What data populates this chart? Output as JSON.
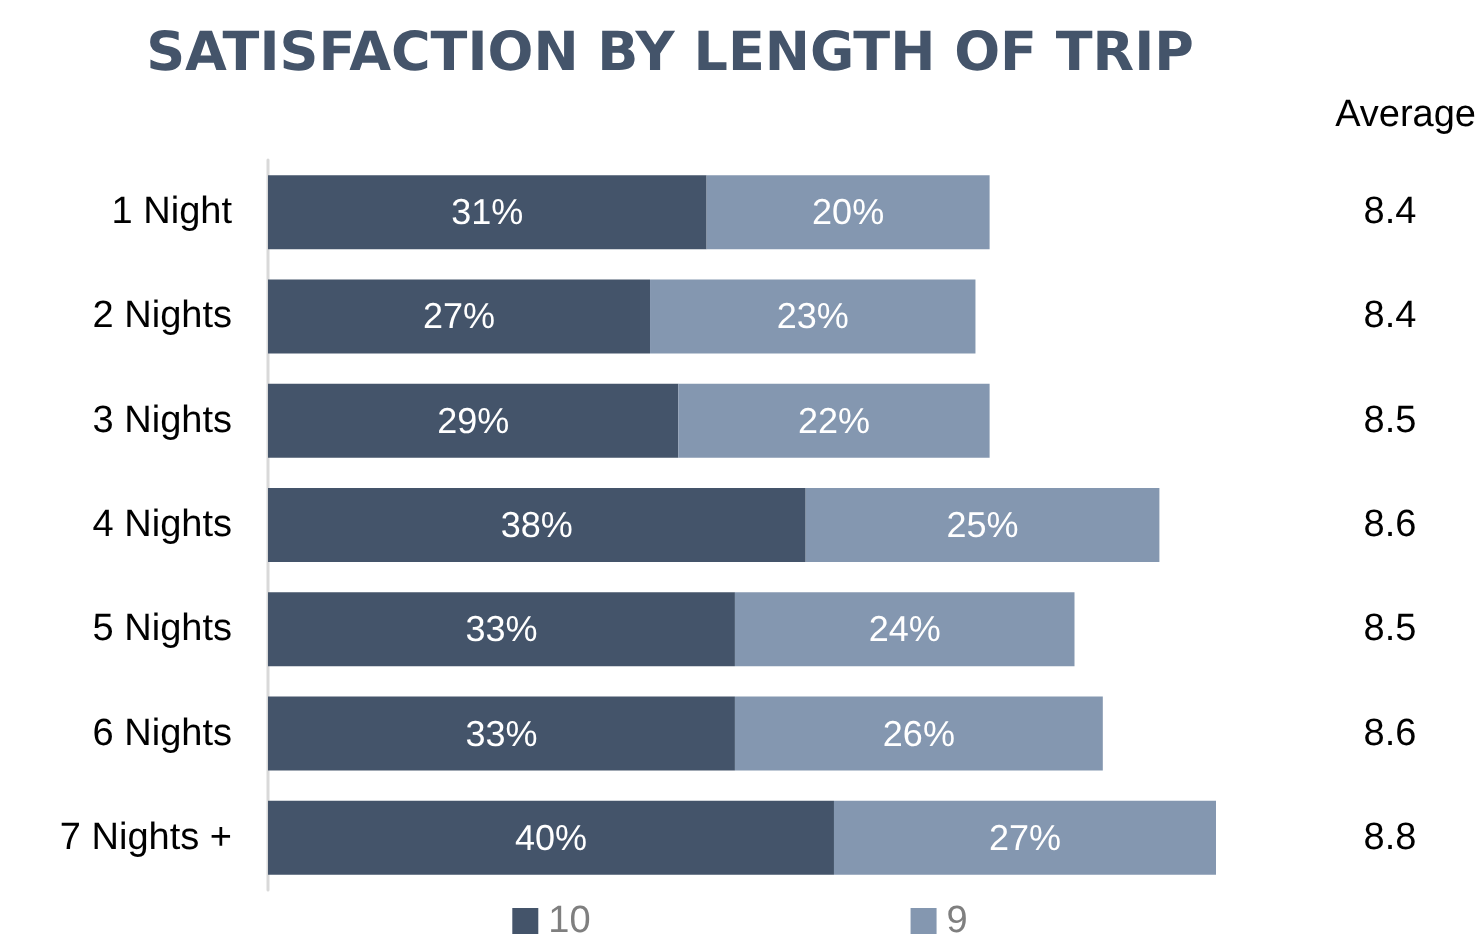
{
  "chart_data": {
    "type": "bar",
    "orientation": "horizontal",
    "stacked": true,
    "title": "SATISFACTION BY LENGTH OF TRIP",
    "categories": [
      "1 Night",
      "2 Nights",
      "3 Nights",
      "4 Nights",
      "5 Nights",
      "6 Nights",
      "7 Nights +"
    ],
    "series": [
      {
        "name": "10",
        "color": "#44546a",
        "values": [
          31,
          27,
          29,
          38,
          33,
          33,
          40
        ],
        "value_labels": [
          "31%",
          "27%",
          "29%",
          "38%",
          "33%",
          "33%",
          "40%"
        ]
      },
      {
        "name": "9",
        "color": "#8497b0",
        "values": [
          20,
          23,
          22,
          25,
          24,
          26,
          27
        ],
        "value_labels": [
          "20%",
          "23%",
          "22%",
          "25%",
          "24%",
          "26%",
          "27%"
        ]
      }
    ],
    "legend": "bottom",
    "annotations": [
      "Average",
      "8.4",
      "8.4",
      "8.5",
      "8.6",
      "8.5",
      "8.6",
      "8.8"
    ]
  }
}
